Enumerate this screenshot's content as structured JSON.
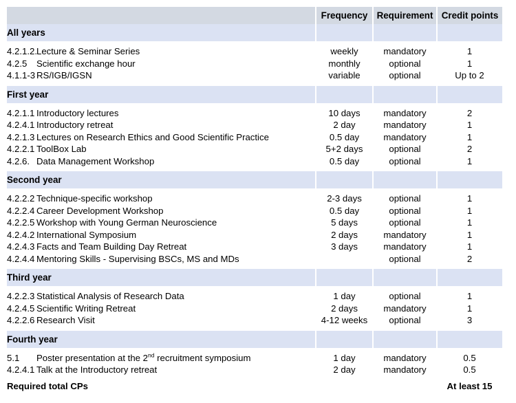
{
  "table": {
    "colors": {
      "header_bg": "#d3d9e2",
      "section_bg": "#dbe2f3",
      "row_bg": "#ffffff",
      "text": "#000000"
    },
    "header": {
      "frequency": "Frequency",
      "requirement": "Requirement",
      "credit": "Credit points"
    },
    "sections": [
      {
        "title": "All years",
        "rows": [
          {
            "code": "4.2.1.2.",
            "name": "Lecture & Seminar Series",
            "frequency": "weekly",
            "requirement": "mandatory",
            "credit": "1"
          },
          {
            "code": "4.2.5",
            "name": "Scientific exchange hour",
            "frequency": "monthly",
            "requirement": "optional",
            "credit": "1"
          },
          {
            "code": "4.1.1-3",
            "name": "RS/IGB/IGSN",
            "frequency": "variable",
            "requirement": "optional",
            "credit": "Up to 2"
          }
        ]
      },
      {
        "title": "First year",
        "rows": [
          {
            "code": "4.2.1.1",
            "name": "Introductory lectures",
            "frequency": "10 days",
            "requirement": "mandatory",
            "credit": "2"
          },
          {
            "code": "4.2.4.1",
            "name": "Introductory retreat",
            "frequency": "2 day",
            "requirement": "mandatory",
            "credit": "1"
          },
          {
            "code": "4.2.1.3",
            "name": "Lectures on Research Ethics and Good Scientific Practice",
            "frequency": "0.5 day",
            "requirement": "mandatory",
            "credit": "1"
          },
          {
            "code": "4.2.2.1",
            "name": "ToolBox Lab",
            "frequency": "5+2 days",
            "requirement": "optional",
            "credit": "2"
          },
          {
            "code": "4.2.6.",
            "name": "Data Management Workshop",
            "frequency": "0.5 day",
            "requirement": "optional",
            "credit": "1"
          }
        ]
      },
      {
        "title": "Second year",
        "rows": [
          {
            "code": "4.2.2.2",
            "name": "Technique-specific workshop",
            "frequency": "2-3 days",
            "requirement": "optional",
            "credit": "1"
          },
          {
            "code": "4.2.2.4",
            "name": "Career Development Workshop",
            "frequency": "0.5 day",
            "requirement": "optional",
            "credit": "1"
          },
          {
            "code": "4.2.2.5",
            "name": "Workshop with Young German Neuroscience",
            "frequency": "5 days",
            "requirement": "optional",
            "credit": "1"
          },
          {
            "code": "4.2.4.2",
            "name": "International Symposium",
            "frequency": "2 days",
            "requirement": "mandatory",
            "credit": "1"
          },
          {
            "code": "4.2.4.3",
            "name": "Facts and Team Building Day Retreat",
            "frequency": "3 days",
            "requirement": "mandatory",
            "credit": "1"
          },
          {
            "code": "4.2.4.4",
            "name": "Mentoring Skills - Supervising BSCs, MS and MDs",
            "frequency": "",
            "requirement": "optional",
            "credit": "2"
          }
        ]
      },
      {
        "title": "Third year",
        "rows": [
          {
            "code": "4.2.2.3",
            "name": "Statistical Analysis of Research Data",
            "frequency": "1 day",
            "requirement": "optional",
            "credit": "1"
          },
          {
            "code": "4.2.4.5",
            "name": "Scientific Writing Retreat",
            "frequency": "2 days",
            "requirement": "mandatory",
            "credit": "1"
          },
          {
            "code": "4.2.2.6",
            "name": "Research Visit",
            "frequency": "4-12 weeks",
            "requirement": "optional",
            "credit": "3"
          }
        ]
      },
      {
        "title": "Fourth year",
        "rows": [
          {
            "code": "5.1",
            "name": "Poster presentation at the 2nd recruitment symposium",
            "name_pre": "Poster presentation at the 2",
            "name_sup": "nd",
            "name_post": " recruitment symposium",
            "frequency": "1 day",
            "requirement": "mandatory",
            "credit": "0.5"
          },
          {
            "code": "4.2.4.1",
            "name": "Talk at the Introductory retreat",
            "frequency": "2 day",
            "requirement": "mandatory",
            "credit": "0.5"
          }
        ]
      }
    ],
    "footer": {
      "label": "Required total CPs",
      "credit": "At least 15"
    }
  }
}
